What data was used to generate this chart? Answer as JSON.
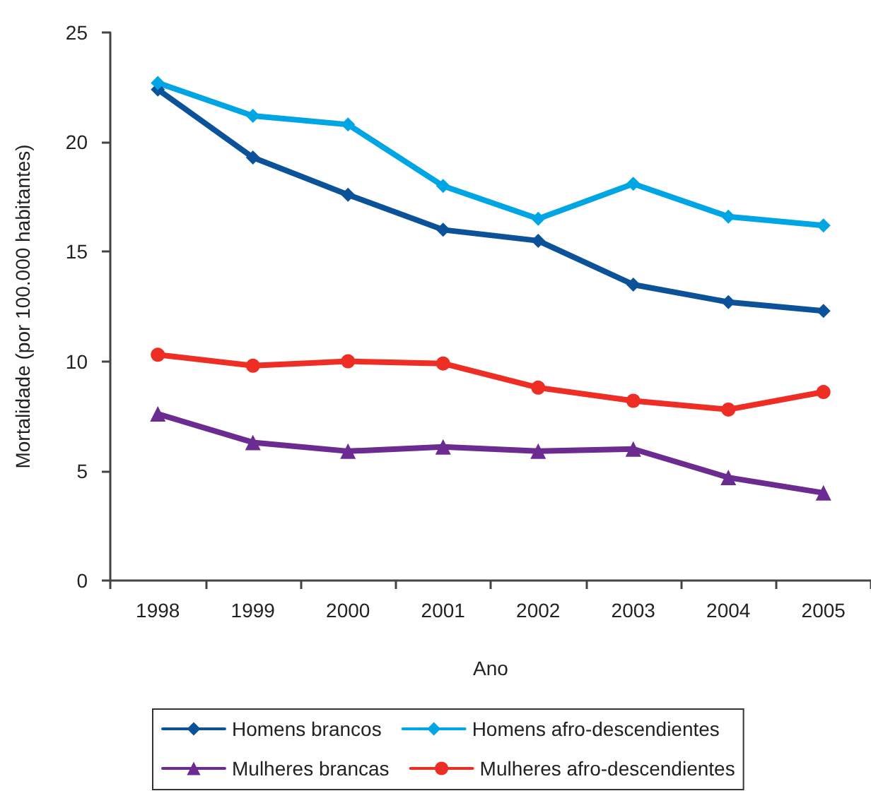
{
  "chart_data": {
    "type": "line",
    "xlabel": "Ano",
    "ylabel": "Mortalidade (por 100.000 habitantes)",
    "categories": [
      "1998",
      "1999",
      "2000",
      "2001",
      "2002",
      "2003",
      "2004",
      "2005"
    ],
    "series": [
      {
        "name": "Homens brancos",
        "color": "#0b5299",
        "marker": "diamond",
        "values": [
          22.4,
          19.3,
          17.6,
          16.0,
          15.5,
          13.5,
          12.7,
          12.3
        ]
      },
      {
        "name": "Homens afro-descendientes",
        "color": "#00a5e3",
        "marker": "diamond",
        "values": [
          22.7,
          21.2,
          20.8,
          18.0,
          16.5,
          18.1,
          16.6,
          16.2
        ]
      },
      {
        "name": "Mulheres brancas",
        "color": "#6c2b90",
        "marker": "triangle",
        "values": [
          7.6,
          6.3,
          5.9,
          6.1,
          5.9,
          6.0,
          4.7,
          4.0
        ]
      },
      {
        "name": "Mulheres afro-descendientes",
        "color": "#ee2e24",
        "marker": "circle",
        "values": [
          10.3,
          9.8,
          10.0,
          9.9,
          8.8,
          8.2,
          7.8,
          8.6
        ]
      }
    ],
    "ylim": [
      0,
      25
    ],
    "yticks": [
      0,
      5,
      10,
      15,
      20,
      25
    ],
    "grid": false,
    "legend": "bottom",
    "line_style": "solid"
  }
}
